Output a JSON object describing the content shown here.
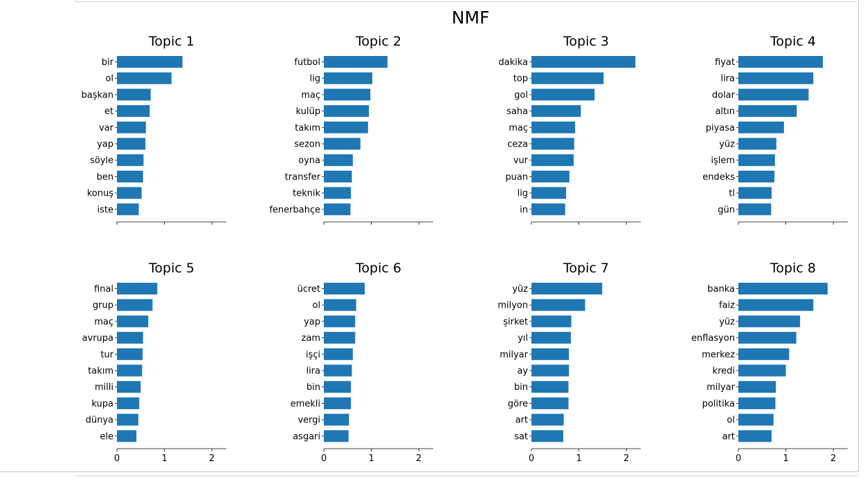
{
  "chart_data": {
    "title": "NMF",
    "type": "bar",
    "orientation": "horizontal",
    "bar_color": "#1f77b4",
    "xlim": [
      0,
      2.3
    ],
    "xticks": [
      0,
      1,
      2
    ],
    "grid": false,
    "subplots": [
      {
        "title": "Topic 1",
        "categories": [
          "bir",
          "ol",
          "başkan",
          "et",
          "var",
          "yap",
          "söyle",
          "ben",
          "konuş",
          "iste"
        ],
        "values": [
          1.38,
          1.15,
          0.71,
          0.69,
          0.61,
          0.6,
          0.56,
          0.55,
          0.52,
          0.46
        ]
      },
      {
        "title": "Topic 2",
        "categories": [
          "futbol",
          "lig",
          "maç",
          "kulüp",
          "takım",
          "sezon",
          "oyna",
          "transfer",
          "teknik",
          "fenerbahçe"
        ],
        "values": [
          1.34,
          1.02,
          0.98,
          0.95,
          0.93,
          0.77,
          0.61,
          0.59,
          0.57,
          0.56
        ]
      },
      {
        "title": "Topic 3",
        "categories": [
          "dakika",
          "top",
          "gol",
          "saha",
          "maç",
          "ceza",
          "vur",
          "puan",
          "lig",
          "in"
        ],
        "values": [
          2.19,
          1.52,
          1.33,
          1.04,
          0.92,
          0.9,
          0.89,
          0.8,
          0.73,
          0.71
        ]
      },
      {
        "title": "Topic 4",
        "categories": [
          "fiyat",
          "lira",
          "dolar",
          "altın",
          "piyasa",
          "yüz",
          "işlem",
          "endeks",
          "tl",
          "gün"
        ],
        "values": [
          1.78,
          1.58,
          1.48,
          1.23,
          0.96,
          0.8,
          0.77,
          0.76,
          0.7,
          0.69
        ]
      },
      {
        "title": "Topic 5",
        "categories": [
          "final",
          "grup",
          "maç",
          "avrupa",
          "tur",
          "takım",
          "milli",
          "kupa",
          "dünya",
          "ele"
        ],
        "values": [
          0.85,
          0.75,
          0.66,
          0.55,
          0.54,
          0.53,
          0.5,
          0.47,
          0.45,
          0.41
        ]
      },
      {
        "title": "Topic 6",
        "categories": [
          "ücret",
          "ol",
          "yap",
          "zam",
          "işçi",
          "lira",
          "bin",
          "emekli",
          "vergi",
          "asgari"
        ],
        "values": [
          0.86,
          0.68,
          0.66,
          0.66,
          0.61,
          0.59,
          0.57,
          0.57,
          0.53,
          0.52
        ]
      },
      {
        "title": "Topic 7",
        "categories": [
          "yüz",
          "milyon",
          "şirket",
          "yıl",
          "milyar",
          "ay",
          "bin",
          "göre",
          "art",
          "sat"
        ],
        "values": [
          1.49,
          1.13,
          0.84,
          0.83,
          0.79,
          0.79,
          0.78,
          0.78,
          0.68,
          0.67
        ]
      },
      {
        "title": "Topic 8",
        "categories": [
          "banka",
          "faiz",
          "yüz",
          "enflasyon",
          "merkez",
          "kredi",
          "milyar",
          "politika",
          "ol",
          "art"
        ],
        "values": [
          1.88,
          1.58,
          1.3,
          1.22,
          1.07,
          1.0,
          0.79,
          0.78,
          0.74,
          0.7
        ]
      }
    ]
  }
}
